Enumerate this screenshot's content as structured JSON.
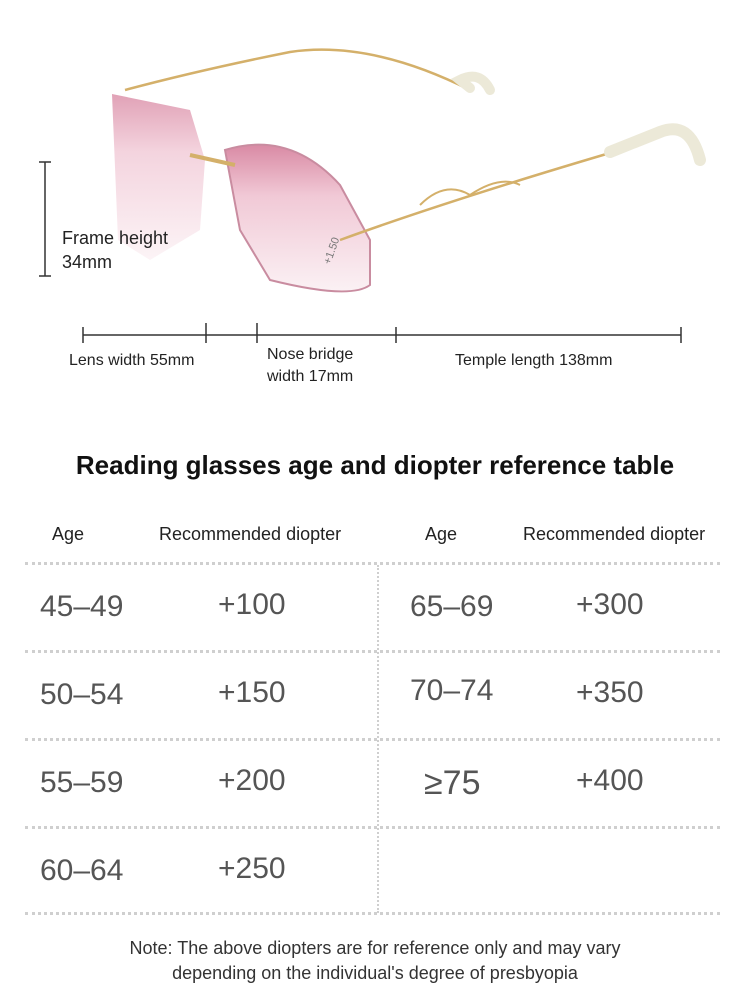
{
  "dimensions": {
    "frame_height": [
      "Frame height",
      "34mm"
    ],
    "lens_width": "Lens width 55mm",
    "nose_bridge": [
      "Nose bridge",
      "width 17mm"
    ],
    "temple_length": "Temple length 138mm"
  },
  "lens_marking": "+1.50",
  "table": {
    "title": "Reading glasses age and diopter reference table",
    "headers": [
      "Age",
      "Recommended diopter",
      "Age",
      "Recommended diopter"
    ],
    "left_rows": [
      {
        "age": "45–49",
        "diopter": "+100"
      },
      {
        "age": "50–54",
        "diopter": "+150"
      },
      {
        "age": "55–59",
        "diopter": "+200"
      },
      {
        "age": "60–64",
        "diopter": "+250"
      }
    ],
    "right_rows": [
      {
        "age": "65–69",
        "diopter": "+300"
      },
      {
        "age": "70–74",
        "diopter": "+350"
      },
      {
        "age": "≥75",
        "diopter": "+400"
      }
    ]
  },
  "note": [
    "Note: The above diopters are for reference only and may vary",
    "depending on the individual's degree of presbyopia"
  ],
  "colors": {
    "lens_tint": "#e9b7c6",
    "frame_gold": "#d4b06a",
    "temple_tip": "#ece9d8"
  }
}
